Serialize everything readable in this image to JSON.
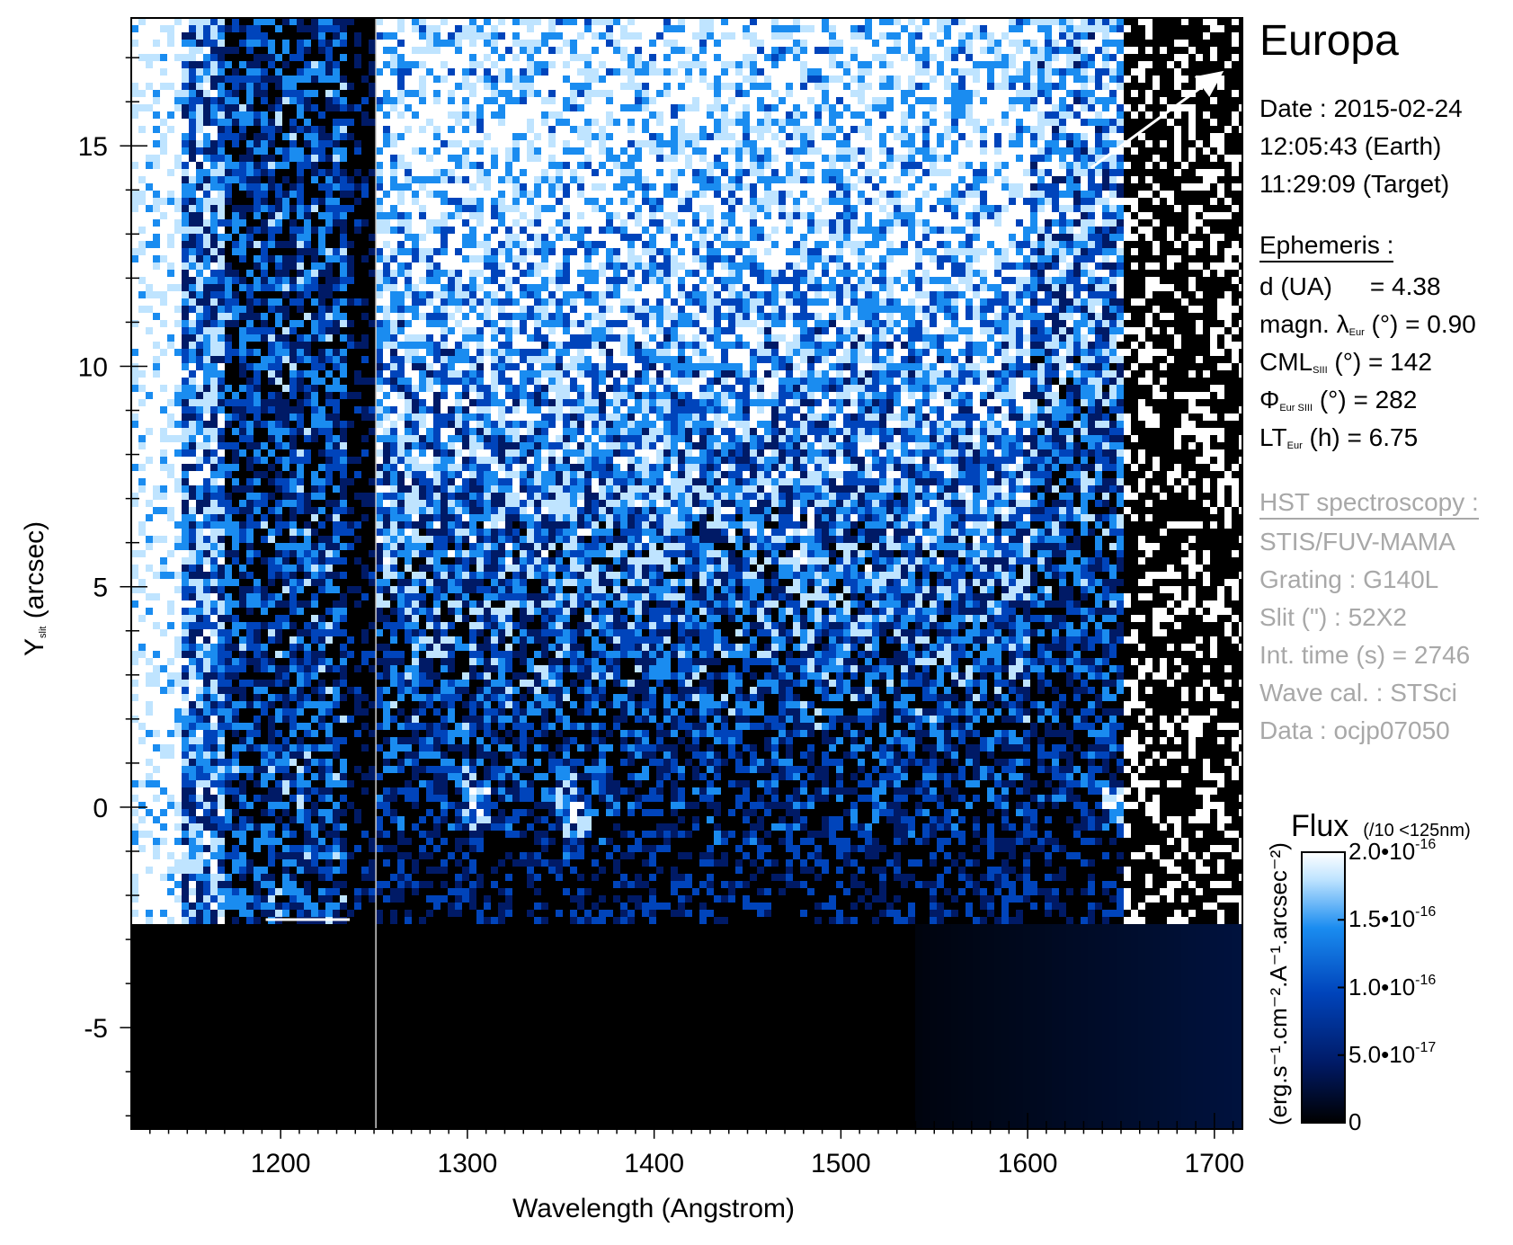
{
  "chart_data": {
    "type": "heatmap",
    "title": "Europa",
    "xlabel": "Wavelength (Angstrom)",
    "ylabel_main": "Y",
    "ylabel_sub": "slit",
    "ylabel_unit": "(arcsec)",
    "xlim": [
      1120,
      1715
    ],
    "ylim": [
      -7.3,
      17.9
    ],
    "x_ticks": [
      1200,
      1300,
      1400,
      1500,
      1600,
      1700
    ],
    "x_tick_labels": [
      "1200",
      "1300",
      "1400",
      "1500",
      "1600",
      "1700"
    ],
    "y_ticks": [
      -5,
      0,
      5,
      10,
      15
    ],
    "y_tick_labels": [
      "-5",
      "0",
      "5",
      "10",
      "15"
    ],
    "grid": false,
    "colormap": [
      "#000000",
      "#001a66",
      "#0044bb",
      "#1a8cf0",
      "#bfe4ff",
      "#ffffff"
    ],
    "colorbar": {
      "title": "Flux",
      "note": "(/10 <125nm)",
      "unit_label": "(erg.s⁻¹.cm⁻².A⁻¹.arcsec⁻²)",
      "range": [
        0,
        2e-16
      ],
      "ticks": [
        0,
        5e-17,
        1e-16,
        1.5e-16,
        2e-16
      ],
      "tick_labels": [
        {
          "mant": "0",
          "exp": ""
        },
        {
          "mant": "5.0•10",
          "exp": "-17"
        },
        {
          "mant": "1.0•10",
          "exp": "-16"
        },
        {
          "mant": "1.5•10",
          "exp": "-16"
        },
        {
          "mant": "2.0•10",
          "exp": "-16"
        }
      ]
    },
    "features": [
      {
        "type": "bright_spot",
        "x": 1356,
        "y": -0.1
      },
      {
        "type": "bright_spot",
        "x": 1304,
        "y": 0.1
      },
      {
        "type": "bright_spot",
        "x": 1216,
        "y": 0.2
      },
      {
        "type": "bright_band",
        "x_range": [
          1640,
          1715
        ],
        "y": 0.2
      }
    ],
    "arrow": {
      "from": [
        1634,
        14.5
      ],
      "to": [
        1705,
        16.7
      ]
    }
  },
  "info": {
    "title": "Europa",
    "date_line": "Date : 2015-02-24",
    "earth_time": "12:05:43 (Earth)",
    "target_time": "11:29:09 (Target)",
    "ephemeris_header": "Ephemeris :",
    "d_label": "d (UA)",
    "d_value": "= 4.38",
    "magn_label": "magn. λ",
    "magn_sub": "Eur",
    "magn_value": "(°)  = 0.90",
    "cml_label": "CML",
    "cml_sub": "SIII",
    "cml_value": "(°) = 142",
    "phi_label": "Φ",
    "phi_sub": "Eur SIII",
    "phi_value": "(°) = 282",
    "lt_label": "LT",
    "lt_sub": "Eur",
    "lt_value": "(h) = 6.75",
    "hst_header": "HST spectroscopy :",
    "instrument": "STIS/FUV-MAMA",
    "grating": "Grating : G140L",
    "slit": "Slit (\") : 52X2",
    "int_time": "Int. time (s) = 2746",
    "wave_cal": "Wave cal. : STSci",
    "data_id": "Data : ocjp07050"
  }
}
